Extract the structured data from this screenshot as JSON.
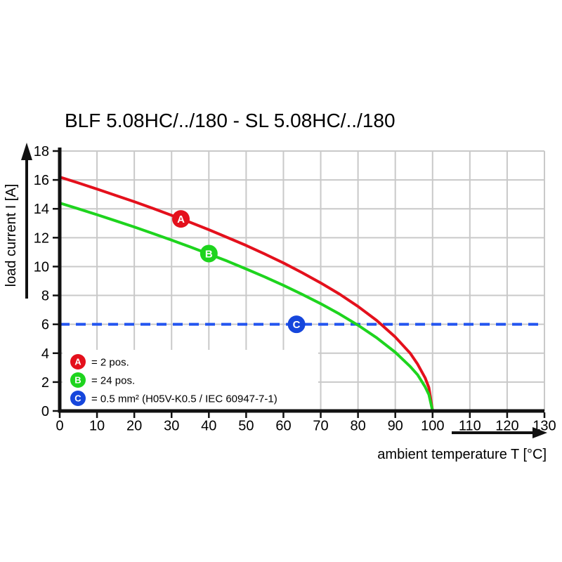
{
  "title": "BLF 5.08HC/../180 - SL 5.08HC/../180",
  "chart_data": {
    "type": "line",
    "title": "BLF 5.08HC/../180 - SL 5.08HC/../180",
    "xlabel": "ambient temperature T [°C]",
    "ylabel": "load current I [A]",
    "xlim": [
      0,
      130
    ],
    "ylim": [
      0,
      18
    ],
    "x_ticks": [
      0,
      10,
      20,
      30,
      40,
      50,
      60,
      70,
      80,
      90,
      100,
      110,
      120,
      130
    ],
    "y_ticks": [
      0,
      2,
      4,
      6,
      8,
      10,
      12,
      14,
      16,
      18
    ],
    "grid": true,
    "grid_color": "#c9c9c9",
    "axis_color": "#111111",
    "series": [
      {
        "name": "2 pos.",
        "letter": "A",
        "color": "#e4101c",
        "points": [
          [
            0,
            16.2
          ],
          [
            5,
            15.79
          ],
          [
            10,
            15.37
          ],
          [
            15,
            14.93
          ],
          [
            20,
            14.49
          ],
          [
            25,
            14.03
          ],
          [
            30,
            13.55
          ],
          [
            35,
            13.06
          ],
          [
            40,
            12.55
          ],
          [
            45,
            12.01
          ],
          [
            50,
            11.46
          ],
          [
            55,
            10.87
          ],
          [
            60,
            10.25
          ],
          [
            65,
            9.58
          ],
          [
            70,
            8.87
          ],
          [
            75,
            8.1
          ],
          [
            80,
            7.24
          ],
          [
            85,
            6.27
          ],
          [
            90,
            5.12
          ],
          [
            94,
            4.0
          ],
          [
            96,
            3.24
          ],
          [
            98,
            2.29
          ],
          [
            99,
            1.62
          ],
          [
            100,
            0
          ]
        ]
      },
      {
        "name": "24 pos.",
        "letter": "B",
        "color": "#1ed41e",
        "points": [
          [
            0,
            14.4
          ],
          [
            5,
            14.0
          ],
          [
            10,
            13.59
          ],
          [
            15,
            13.17
          ],
          [
            20,
            12.74
          ],
          [
            25,
            12.29
          ],
          [
            30,
            11.83
          ],
          [
            35,
            11.36
          ],
          [
            40,
            10.87
          ],
          [
            45,
            10.37
          ],
          [
            50,
            9.83
          ],
          [
            55,
            9.28
          ],
          [
            60,
            8.7
          ],
          [
            65,
            8.08
          ],
          [
            70,
            7.43
          ],
          [
            75,
            6.72
          ],
          [
            80,
            5.94
          ],
          [
            85,
            5.07
          ],
          [
            90,
            4.06
          ],
          [
            94,
            3.08
          ],
          [
            96,
            2.5
          ],
          [
            98,
            1.67
          ],
          [
            99,
            1.14
          ],
          [
            100,
            0
          ]
        ]
      }
    ],
    "threshold": {
      "y": 6,
      "color": "#2355f0",
      "style": "dashed",
      "label": "0.5 mm² (H05V-K0.5 / IEC 60947-7-1)"
    },
    "markers": [
      {
        "letter": "A",
        "color": "#e4101c",
        "x": 32.5,
        "y": 13.3
      },
      {
        "letter": "B",
        "color": "#1ed41e",
        "x": 40,
        "y": 10.9
      },
      {
        "letter": "C",
        "color": "#1646dc",
        "x": 63.5,
        "y": 6
      }
    ],
    "legend": [
      {
        "letter": "A",
        "color": "#e4101c",
        "label": "= 2 pos."
      },
      {
        "letter": "B",
        "color": "#1ed41e",
        "label": "= 24 pos."
      },
      {
        "letter": "C",
        "color": "#1646dc",
        "label": "= 0.5 mm² (H05V-K0.5 / IEC 60947-7-1)"
      }
    ],
    "legend_position": "bottom-left-inside"
  }
}
